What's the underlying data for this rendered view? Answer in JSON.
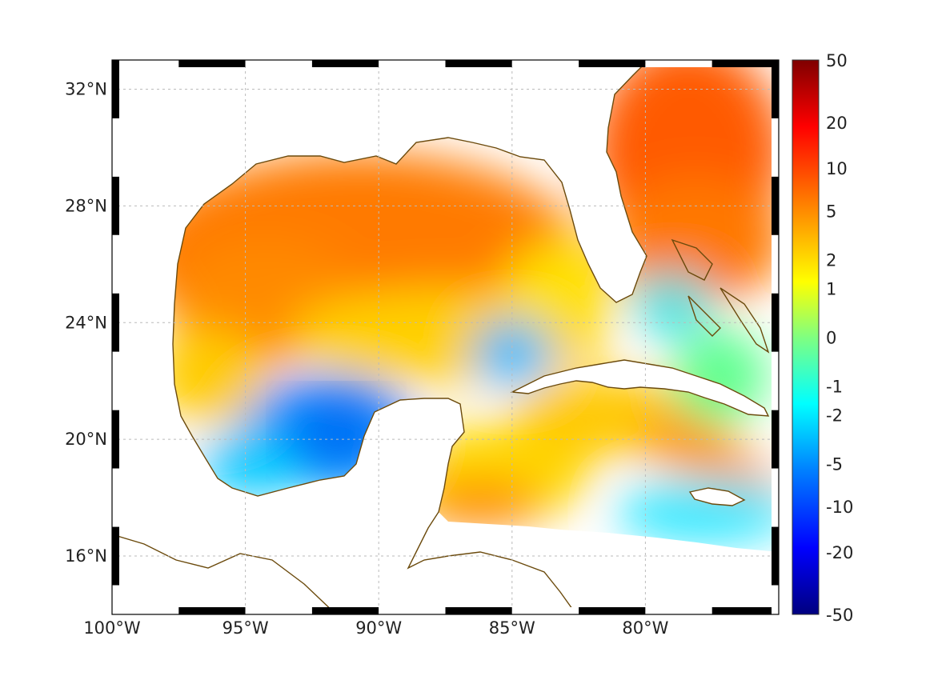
{
  "map": {
    "lon_range": [
      -100,
      -75
    ],
    "lat_range": [
      14,
      33
    ],
    "grid": true,
    "frame": "black-white dashed border",
    "coastline_color": "#6b4a0c",
    "land_mask_color": "#ffffff"
  },
  "axes": {
    "lon_ticks": [
      {
        "value": -100,
        "label": "100°W"
      },
      {
        "value": -95,
        "label": "95°W"
      },
      {
        "value": -90,
        "label": "90°W"
      },
      {
        "value": -85,
        "label": "85°W"
      },
      {
        "value": -80,
        "label": "80°W"
      }
    ],
    "lat_ticks": [
      {
        "value": 32,
        "label": "32°N"
      },
      {
        "value": 28,
        "label": "28°N"
      },
      {
        "value": 24,
        "label": "24°N"
      },
      {
        "value": 20,
        "label": "20°N"
      },
      {
        "value": 16,
        "label": "16°N"
      }
    ]
  },
  "colorbar": {
    "colormap": "jet",
    "scale": "symmetric log",
    "labels": [
      "50",
      "20",
      "10",
      "5",
      "2",
      "1",
      "0",
      "-1",
      "-2",
      "-5",
      "-10",
      "-20",
      "-50"
    ],
    "colors": [
      "#7f0000",
      "#ff0000",
      "#ff8000",
      "#ffff00",
      "#00ffff",
      "#0080ff",
      "#0000ff",
      "#00007f"
    ]
  }
}
